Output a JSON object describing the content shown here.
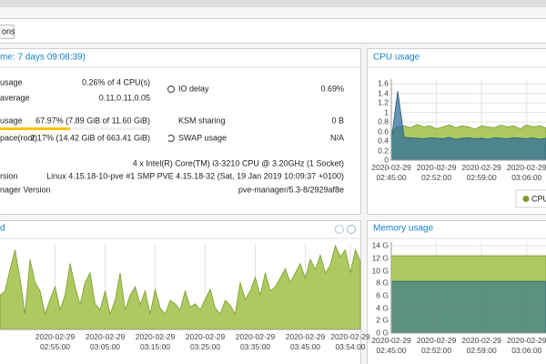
{
  "toolbar": {
    "button": "ons"
  },
  "summary": {
    "title": "me: 7 days 09:08:39)",
    "left": [
      {
        "label": "usage",
        "value": "0.26% of 4 CPU(s)"
      },
      {
        "label": "average",
        "value": "0.11,0.11,0.05"
      },
      {
        "label": "usage",
        "value": "67.97% (7.89 GiB of 11.60 GiB)",
        "progress": 67.97
      },
      {
        "label": "pace(root)",
        "value": "2.17% (14.42 GiB of 663.41 GiB)"
      }
    ],
    "right": [
      {
        "label": "IO delay",
        "value": "0.69%"
      },
      {
        "label": "KSM sharing",
        "value": "0 B"
      },
      {
        "label": "SWAP usage",
        "value": "N/A"
      }
    ],
    "cpu_model": "4 x Intel(R) Core(TM) i3-3210 CPU @ 3.20GHz (1 Socket)",
    "kernel": {
      "label": "rsion",
      "value": "Linux 4.15.18-10-pve #1 SMP PVE 4.15.18-32 (Sat, 19 Jan 2019 10:09:37 +0100)"
    },
    "manager": {
      "label": "nager Version",
      "value": "pve-manager/5.3-8/2929af8e"
    }
  },
  "cpu_chart": {
    "type": "area",
    "title": "CPU usage",
    "grid": true,
    "x": [
      0,
      1,
      2,
      3,
      4,
      5,
      6,
      7,
      8,
      9,
      10,
      11,
      12,
      13,
      14,
      15,
      16,
      17,
      18,
      19,
      20,
      21,
      22,
      23,
      24
    ],
    "xlim": [
      0,
      24
    ],
    "ylim": [
      0,
      1.7
    ],
    "yticks": [
      0,
      0.2,
      0.4,
      0.6,
      0.8,
      1,
      1.2,
      1.4,
      1.6
    ],
    "xticks": [
      {
        "value": 0,
        "label": "2020-02-29\n02:45:00"
      },
      {
        "value": 7,
        "label": "2020-02-29\n02:52:00"
      },
      {
        "value": 14,
        "label": "2020-02-29\n02:59:00"
      },
      {
        "value": 21,
        "label": "2020-02-29\n03:06:00"
      }
    ],
    "series": [
      {
        "name": "CPU",
        "color": "#a4c34f",
        "values": [
          0.62,
          0.7,
          0.72,
          0.68,
          0.75,
          0.7,
          0.72,
          0.66,
          0.7,
          0.74,
          0.68,
          0.72,
          0.7,
          0.65,
          0.72,
          0.7,
          0.68,
          0.74,
          0.7,
          0.72,
          0.66,
          0.74,
          0.7,
          0.72,
          0.68
        ]
      },
      {
        "color": "#2a6aa0",
        "values": [
          0.42,
          1.45,
          0.48,
          0.47,
          0.46,
          0.45,
          0.47,
          0.46,
          0.45,
          0.48,
          0.44,
          0.46,
          0.47,
          0.45,
          0.46,
          0.44,
          0.47,
          0.46,
          0.45,
          0.47,
          0.46,
          0.45,
          0.47,
          0.44,
          0.46
        ]
      }
    ]
  },
  "net_chart": {
    "type": "area",
    "title": "d",
    "grid": true,
    "x": [
      -1,
      0,
      1,
      2,
      3,
      4,
      5,
      6,
      7,
      8,
      9,
      10,
      11,
      12,
      13,
      14,
      15,
      16,
      17,
      18,
      19,
      20,
      21,
      22,
      23,
      24,
      25,
      26,
      27,
      28,
      29,
      30,
      31,
      32,
      33,
      34,
      35,
      36,
      37,
      38,
      39,
      40,
      41,
      42,
      43,
      44,
      45,
      46,
      47,
      48,
      49,
      50,
      51,
      52,
      53,
      54,
      55,
      56,
      57,
      58,
      59,
      60,
      61,
      62,
      63,
      64,
      65,
      66,
      67,
      68,
      69,
      70,
      71
    ],
    "xlim": [
      -1,
      71
    ],
    "ylim": [
      0,
      100
    ],
    "xticks": [
      {
        "value": 10,
        "label": "2020-02-29\n02:55:00"
      },
      {
        "value": 20,
        "label": "2020-02-29\n03:05:00"
      },
      {
        "value": 30,
        "label": "2020-02-29\n03:15:00"
      },
      {
        "value": 40,
        "label": "2020-02-29\n03:25:00"
      },
      {
        "value": 50,
        "label": "2020-02-29\n03:35:00"
      },
      {
        "value": 60,
        "label": "2020-02-29\n03:45:00"
      },
      {
        "value": 69,
        "label": "2020-02-29\n03:54:00"
      }
    ],
    "series": [
      {
        "color": "#a4c34f",
        "values": [
          40,
          45,
          70,
          93,
          60,
          18,
          82,
          55,
          45,
          18,
          35,
          50,
          23,
          40,
          77,
          50,
          29,
          55,
          66,
          30,
          23,
          45,
          18,
          34,
          66,
          23,
          40,
          50,
          29,
          45,
          18,
          47,
          25,
          18,
          34,
          30,
          23,
          45,
          26,
          30,
          23,
          35,
          47,
          25,
          18,
          34,
          28,
          18,
          55,
          35,
          45,
          61,
          40,
          66,
          45,
          50,
          60,
          71,
          55,
          66,
          77,
          60,
          82,
          70,
          87,
          66,
          75,
          98,
          85,
          93,
          66,
          93,
          80
        ]
      }
    ]
  },
  "mem_chart": {
    "type": "area",
    "title": "Memory usage",
    "grid": true,
    "x": [
      0,
      24
    ],
    "xlim": [
      0,
      24
    ],
    "ylim": [
      0,
      14.6
    ],
    "yticks": [
      {
        "value": 0,
        "label": "0 G"
      },
      {
        "value": 2,
        "label": "2 G"
      },
      {
        "value": 4,
        "label": "4 G"
      },
      {
        "value": 6,
        "label": "6 G"
      },
      {
        "value": 8,
        "label": "8 G"
      },
      {
        "value": 10,
        "label": "10 G"
      },
      {
        "value": 12,
        "label": "12 G"
      },
      {
        "value": 14,
        "label": "14 G"
      }
    ],
    "xticks": [
      {
        "value": 0,
        "label": "2020-02-29\n02:45:00"
      },
      {
        "value": 7,
        "label": "2020-02-29\n02:52:00"
      },
      {
        "value": 14,
        "label": "2020-02-29\n02:59:00"
      },
      {
        "value": 21,
        "label": "2020-02-29\n03:06:00"
      }
    ],
    "series": [
      {
        "color": "#a4c34f",
        "values": [
          12.4,
          12.4
        ]
      },
      {
        "color": "#3d7a8a",
        "values": [
          8.3,
          8.3
        ]
      }
    ]
  }
}
